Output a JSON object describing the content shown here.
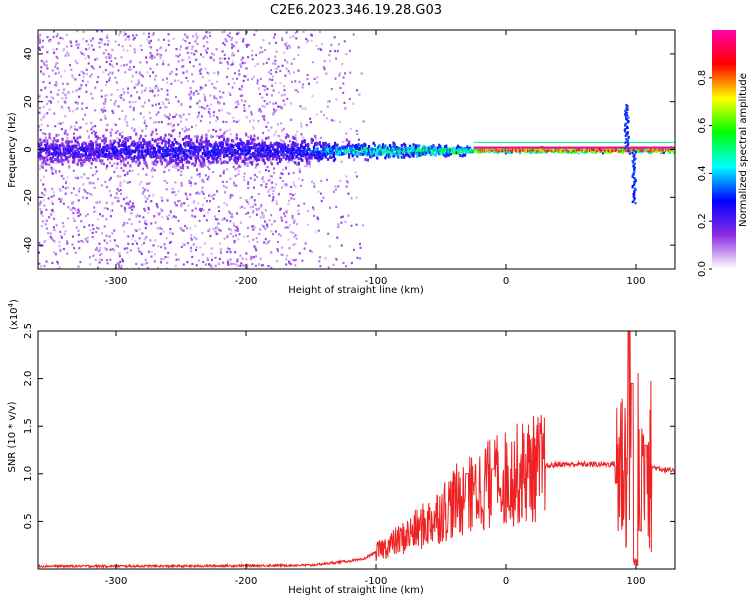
{
  "title": "C2E6.2023.346.19.28.G03",
  "chart_data": [
    {
      "type": "heatmap",
      "xlabel": "Height of straight line (km)",
      "ylabel": "Frequency (Hz)",
      "xlim": [
        -360,
        130
      ],
      "ylim": [
        -50,
        50
      ],
      "xticks": [
        -300,
        -200,
        -100,
        0,
        100
      ],
      "yticks": [
        -40,
        -20,
        0,
        20,
        40
      ],
      "colorbar": {
        "label": "Normalized spectral amplitude",
        "range": [
          0.0,
          1.0
        ],
        "ticks": [
          "0.0",
          "0.2",
          "0.4",
          "0.6",
          "0.8"
        ],
        "colormap": [
          "#ffffff",
          "#8a2be2",
          "#0000ff",
          "#00ffff",
          "#00ff00",
          "#ffff00",
          "#ff0000",
          "#ff00aa"
        ]
      },
      "band": [
        {
          "x": -360,
          "half_width_hz": 5,
          "peak": 0.25
        },
        {
          "x": -250,
          "half_width_hz": 6,
          "peak": 0.28
        },
        {
          "x": -160,
          "half_width_hz": 5,
          "peak": 0.3
        },
        {
          "x": -130,
          "half_width_hz": 3,
          "peak": 0.45
        },
        {
          "x": -100,
          "half_width_hz": 3,
          "peak": 0.5
        },
        {
          "x": -60,
          "half_width_hz": 2.5,
          "peak": 0.55
        },
        {
          "x": -30,
          "half_width_hz": 1.5,
          "peak": 0.6
        },
        {
          "x": -20,
          "half_width_hz": 1,
          "peak": 0.9
        },
        {
          "x": 0,
          "half_width_hz": 1,
          "peak": 0.95
        },
        {
          "x": 50,
          "half_width_hz": 1,
          "peak": 0.95
        },
        {
          "x": 90,
          "half_width_hz": 1,
          "peak": 0.95
        },
        {
          "x": 130,
          "half_width_hz": 1,
          "peak": 0.9
        }
      ],
      "features": [
        {
          "x": 92,
          "y_from": 0,
          "y_to": 19,
          "peak": 0.3
        },
        {
          "x": 98,
          "y_from": 0,
          "y_to": -22,
          "peak": 0.3
        }
      ]
    },
    {
      "type": "line",
      "xlabel": "Height of straight line (km)",
      "ylabel": "SNR (10 * v/v)",
      "multiplier": "(x10",
      "multiplier_exp": "4",
      "multiplier_close": ")",
      "xlim": [
        -360,
        130
      ],
      "ylim": [
        0,
        2.5
      ],
      "xticks": [
        -300,
        -200,
        -100,
        0,
        100
      ],
      "yticks": [
        "0.5",
        "1.0",
        "1.5",
        "2.0",
        "2.5"
      ],
      "color": "#ee2222",
      "envelope": [
        [
          -360,
          0.03
        ],
        [
          -250,
          0.03
        ],
        [
          -150,
          0.04
        ],
        [
          -130,
          0.07
        ],
        [
          -110,
          0.1
        ],
        [
          -100,
          0.18
        ],
        [
          -80,
          0.32
        ],
        [
          -60,
          0.48
        ],
        [
          -40,
          0.7
        ],
        [
          -20,
          0.85
        ],
        [
          0,
          0.95
        ],
        [
          20,
          1.05
        ],
        [
          40,
          1.1
        ],
        [
          60,
          1.1
        ],
        [
          80,
          1.1
        ],
        [
          90,
          1.12
        ],
        [
          100,
          1.1
        ],
        [
          110,
          1.08
        ],
        [
          130,
          1.02
        ]
      ],
      "spikes": [
        [
          -30,
          1.0
        ],
        [
          -25,
          0.9
        ],
        [
          -15,
          1.25
        ],
        [
          -10,
          1.05
        ],
        [
          -5,
          0.85
        ],
        [
          85,
          0.9
        ],
        [
          95,
          2.55
        ],
        [
          97,
          1.95
        ],
        [
          100,
          0.05
        ],
        [
          103,
          0.4
        ],
        [
          108,
          1.3
        ]
      ]
    }
  ]
}
